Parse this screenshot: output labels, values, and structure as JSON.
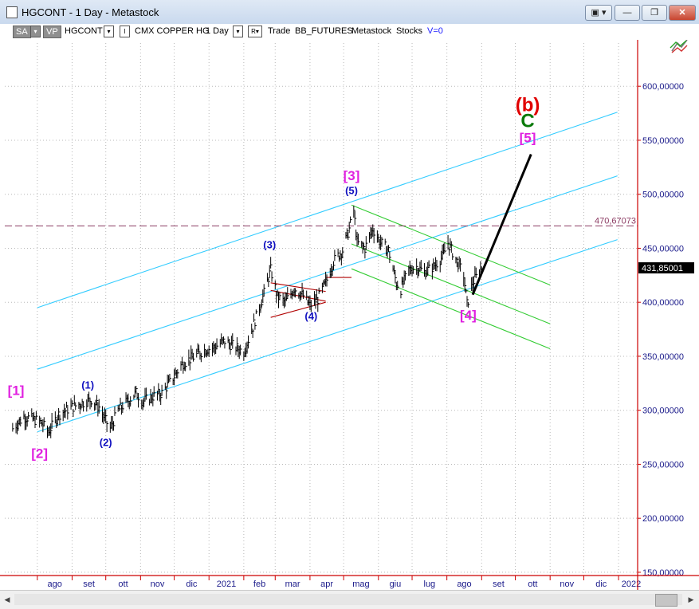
{
  "window": {
    "title": "HGCONT - 1 Day - Metastock",
    "controls": [
      "▣ ▾",
      "—",
      "❐",
      "✕"
    ]
  },
  "toolbar": {
    "sa": "SA",
    "vp": "VP",
    "symbol": "HGCONT",
    "indicator_box": "I",
    "name": "CMX COPPER HG",
    "period": "1 Day",
    "r_box": "R▾",
    "trade": "Trade",
    "exchange": "BB_FUTURES",
    "source": "Metastock",
    "stocks": "Stocks",
    "volume": "V=0"
  },
  "chart_data": {
    "type": "line",
    "instrument": "CMX COPPER HG",
    "y_axis": {
      "ticks": [
        "600,00000",
        "550,00000",
        "500,00000",
        "450,00000",
        "400,00000",
        "350,00000",
        "300,00000",
        "250,00000",
        "200,00000",
        "150,00000"
      ],
      "tick_values": [
        600,
        550,
        500,
        450,
        400,
        350,
        300,
        250,
        200,
        150
      ],
      "ylim": [
        147,
        640
      ]
    },
    "x_axis": {
      "ticks": [
        "ago",
        "set",
        "ott",
        "nov",
        "dic",
        "2021",
        "feb",
        "mar",
        "apr",
        "mag",
        "giu",
        "lug",
        "ago",
        "set",
        "ott",
        "nov",
        "dic",
        "2022"
      ]
    },
    "last_price_label": "431,85001",
    "horizontal_level": {
      "value": 470.67073,
      "label": "470,67073"
    },
    "price_path": [
      {
        "x": "2020-07-10",
        "y": 283
      },
      {
        "x": "2020-07-20",
        "y": 294
      },
      {
        "x": "2020-07-28",
        "y": 292
      },
      {
        "x": "2020-08-04",
        "y": 289
      },
      {
        "x": "2020-08-11",
        "y": 280
      },
      {
        "x": "2020-08-20",
        "y": 296
      },
      {
        "x": "2020-08-28",
        "y": 301
      },
      {
        "x": "2020-09-08",
        "y": 306
      },
      {
        "x": "2020-09-18",
        "y": 310
      },
      {
        "x": "2020-09-25",
        "y": 303
      },
      {
        "x": "2020-10-01",
        "y": 290
      },
      {
        "x": "2020-10-05",
        "y": 283
      },
      {
        "x": "2020-10-12",
        "y": 300
      },
      {
        "x": "2020-10-20",
        "y": 308
      },
      {
        "x": "2020-10-28",
        "y": 316
      },
      {
        "x": "2020-11-03",
        "y": 308
      },
      {
        "x": "2020-11-10",
        "y": 312
      },
      {
        "x": "2020-11-20",
        "y": 316
      },
      {
        "x": "2020-11-30",
        "y": 330
      },
      {
        "x": "2020-12-08",
        "y": 343
      },
      {
        "x": "2020-12-16",
        "y": 348
      },
      {
        "x": "2020-12-28",
        "y": 356
      },
      {
        "x": "2021-01-05",
        "y": 358
      },
      {
        "x": "2021-01-15",
        "y": 364
      },
      {
        "x": "2021-01-25",
        "y": 358
      },
      {
        "x": "2021-02-01",
        "y": 354
      },
      {
        "x": "2021-02-10",
        "y": 380
      },
      {
        "x": "2021-02-18",
        "y": 405
      },
      {
        "x": "2021-02-25",
        "y": 430
      },
      {
        "x": "2021-03-03",
        "y": 405
      },
      {
        "x": "2021-03-10",
        "y": 400
      },
      {
        "x": "2021-03-18",
        "y": 413
      },
      {
        "x": "2021-03-26",
        "y": 406
      },
      {
        "x": "2021-04-01",
        "y": 397
      },
      {
        "x": "2021-04-08",
        "y": 403
      },
      {
        "x": "2021-04-15",
        "y": 418
      },
      {
        "x": "2021-04-22",
        "y": 438
      },
      {
        "x": "2021-04-30",
        "y": 448
      },
      {
        "x": "2021-05-06",
        "y": 468
      },
      {
        "x": "2021-05-10",
        "y": 485
      },
      {
        "x": "2021-05-13",
        "y": 455
      },
      {
        "x": "2021-05-20",
        "y": 450
      },
      {
        "x": "2021-05-27",
        "y": 468
      },
      {
        "x": "2021-06-03",
        "y": 455
      },
      {
        "x": "2021-06-10",
        "y": 448
      },
      {
        "x": "2021-06-17",
        "y": 418
      },
      {
        "x": "2021-06-21",
        "y": 412
      },
      {
        "x": "2021-06-28",
        "y": 430
      },
      {
        "x": "2021-07-05",
        "y": 433
      },
      {
        "x": "2021-07-12",
        "y": 428
      },
      {
        "x": "2021-07-20",
        "y": 433
      },
      {
        "x": "2021-07-28",
        "y": 442
      },
      {
        "x": "2021-08-02",
        "y": 455
      },
      {
        "x": "2021-08-09",
        "y": 440
      },
      {
        "x": "2021-08-16",
        "y": 425
      },
      {
        "x": "2021-08-19",
        "y": 398
      },
      {
        "x": "2021-08-24",
        "y": 418
      },
      {
        "x": "2021-09-01",
        "y": 432
      }
    ],
    "wave_labels": [
      {
        "text": "[1]",
        "x": "2020-07-13",
        "y": 314,
        "color": "#e020e0",
        "size": "large"
      },
      {
        "text": "[2]",
        "x": "2020-08-03",
        "y": 256,
        "color": "#e020e0",
        "size": "large"
      },
      {
        "text": "(1)",
        "x": "2020-09-15",
        "y": 320,
        "color": "#1010c0",
        "size": "normal"
      },
      {
        "text": "(2)",
        "x": "2020-10-01",
        "y": 267,
        "color": "#1010c0",
        "size": "normal"
      },
      {
        "text": "(3)",
        "x": "2021-02-24",
        "y": 450,
        "color": "#1010c0",
        "size": "normal"
      },
      {
        "text": "(4)",
        "x": "2021-04-02",
        "y": 384,
        "color": "#1010c0",
        "size": "normal"
      },
      {
        "text": "(5)",
        "x": "2021-05-08",
        "y": 500,
        "color": "#1010c0",
        "size": "normal"
      },
      {
        "text": "[3]",
        "x": "2021-05-08",
        "y": 513,
        "color": "#e020e0",
        "size": "large"
      },
      {
        "text": "[4]",
        "x": "2021-08-20",
        "y": 384,
        "color": "#e020e0",
        "size": "large"
      },
      {
        "text": "[5]",
        "x": "2021-10-12",
        "y": 548,
        "color": "#e020e0",
        "size": "large"
      },
      {
        "text": "C",
        "x": "2021-10-12",
        "y": 562,
        "color": "#0a7a0a",
        "size": "xlarge"
      },
      {
        "text": "(b)",
        "x": "2021-10-12",
        "y": 577,
        "color": "#e00000",
        "size": "xlarge"
      }
    ],
    "trendlines": [
      {
        "color": "#33ccff",
        "points": [
          {
            "x": "2020-08-01",
            "y": 280
          },
          {
            "x": "2021-12-31",
            "y": 458
          }
        ]
      },
      {
        "color": "#33ccff",
        "points": [
          {
            "x": "2020-08-01",
            "y": 338
          },
          {
            "x": "2021-12-31",
            "y": 517
          }
        ]
      },
      {
        "color": "#33ccff",
        "points": [
          {
            "x": "2020-08-01",
            "y": 395
          },
          {
            "x": "2021-12-31",
            "y": 576
          }
        ]
      },
      {
        "color": "#33cc33",
        "points": [
          {
            "x": "2021-05-08",
            "y": 490
          },
          {
            "x": "2021-11-01",
            "y": 416
          }
        ]
      },
      {
        "color": "#33cc33",
        "points": [
          {
            "x": "2021-05-08",
            "y": 454
          },
          {
            "x": "2021-11-01",
            "y": 380
          }
        ]
      },
      {
        "color": "#33cc33",
        "points": [
          {
            "x": "2021-05-08",
            "y": 431
          },
          {
            "x": "2021-11-01",
            "y": 357
          }
        ]
      },
      {
        "color": "#b00000",
        "points": [
          {
            "x": "2021-02-25",
            "y": 411
          },
          {
            "x": "2021-04-15",
            "y": 401
          }
        ]
      },
      {
        "color": "#b00000",
        "points": [
          {
            "x": "2021-02-25",
            "y": 418
          },
          {
            "x": "2021-04-15",
            "y": 410
          }
        ]
      },
      {
        "color": "#b00000",
        "points": [
          {
            "x": "2021-02-25",
            "y": 386
          },
          {
            "x": "2021-04-15",
            "y": 400
          }
        ]
      },
      {
        "color": "#b00000",
        "points": [
          {
            "x": "2021-04-15",
            "y": 423
          },
          {
            "x": "2021-05-08",
            "y": 423
          }
        ]
      },
      {
        "color": "#000000",
        "points": [
          {
            "x": "2021-08-24",
            "y": 407
          },
          {
            "x": "2021-10-15",
            "y": 537
          }
        ],
        "projection": true
      }
    ],
    "grid": true,
    "colors": {
      "axis": "#cc0000",
      "grid": "#b8b8b8",
      "price": "#000000",
      "last_price_bg": "#000000",
      "level": "#8b3a62"
    }
  }
}
